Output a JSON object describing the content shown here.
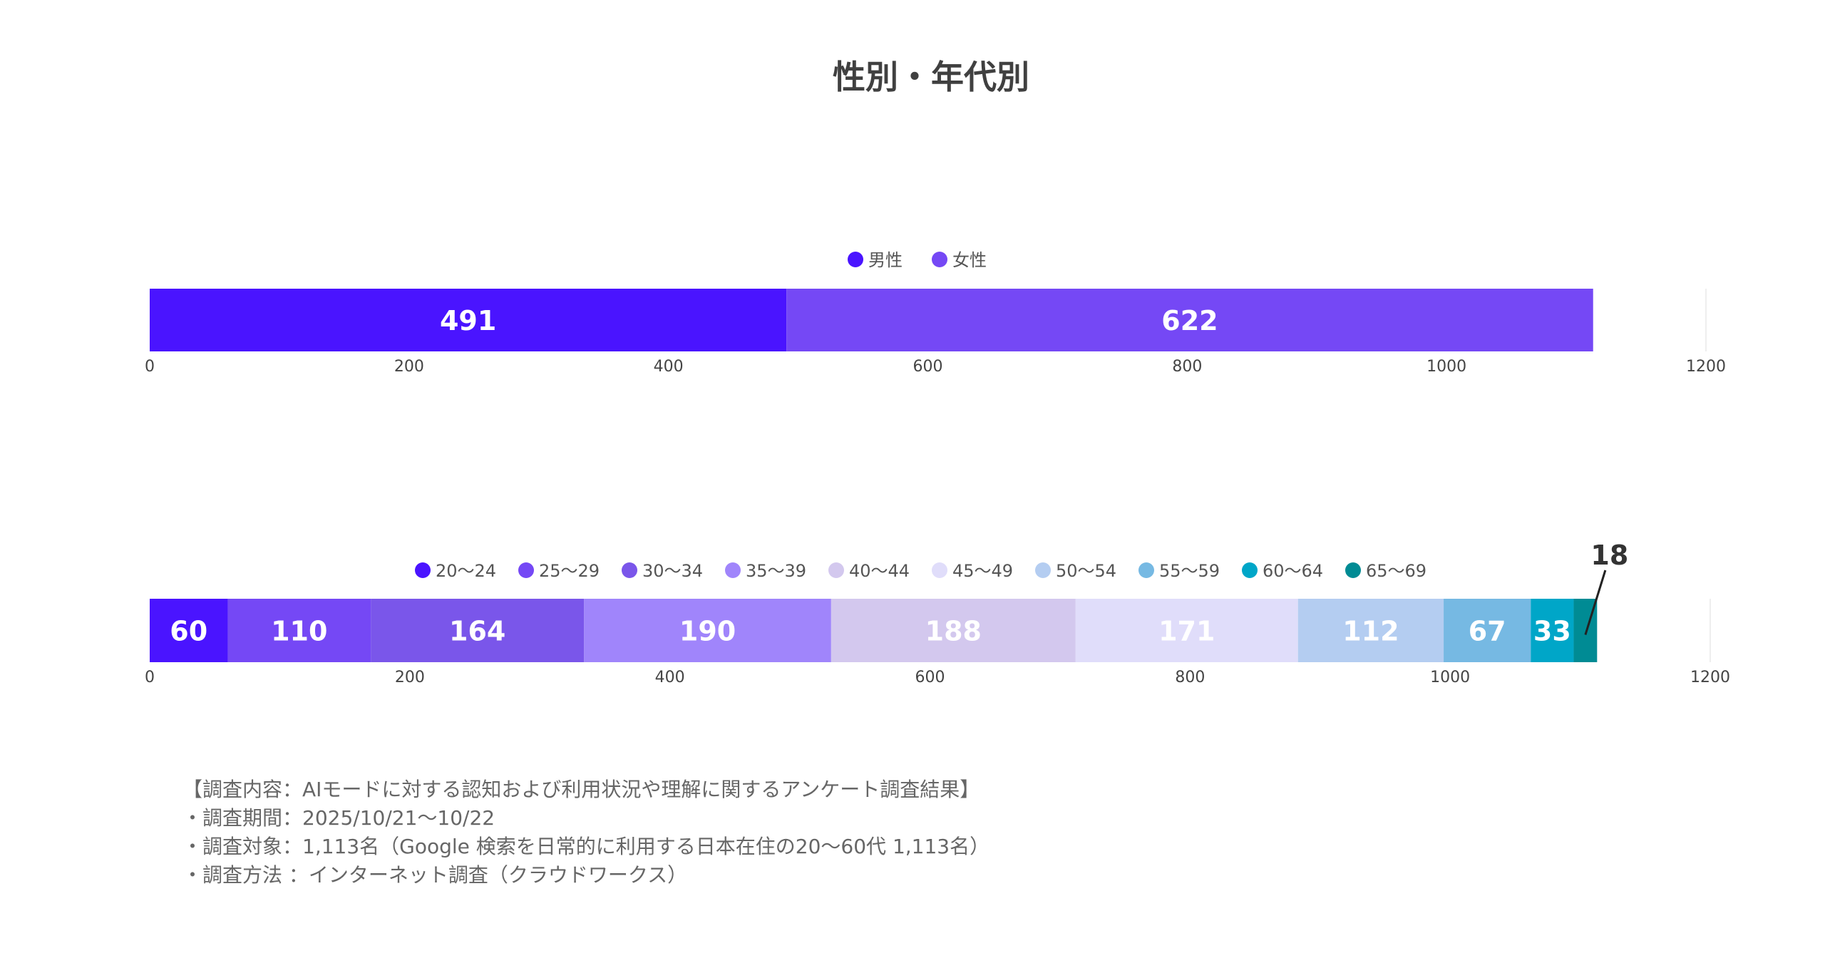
{
  "title": "性別・年代別",
  "chart_data": [
    {
      "type": "bar",
      "orientation": "horizontal-stacked",
      "xlim": [
        0,
        1200
      ],
      "ticks": [
        "0",
        "200",
        "400",
        "600",
        "800",
        "1000",
        "1200"
      ],
      "legend_position": "top",
      "series": [
        {
          "name": "男性",
          "value": 491,
          "color": "#4a14ff"
        },
        {
          "name": "女性",
          "value": 622,
          "color": "#7548f5"
        }
      ]
    },
    {
      "type": "bar",
      "orientation": "horizontal-stacked",
      "xlim": [
        0,
        1200
      ],
      "ticks": [
        "0",
        "200",
        "400",
        "600",
        "800",
        "1000",
        "1200"
      ],
      "legend_position": "top",
      "series": [
        {
          "name": "20〜24",
          "value": 60,
          "color": "#4a14ff"
        },
        {
          "name": "25〜29",
          "value": 110,
          "color": "#7548f5"
        },
        {
          "name": "30〜34",
          "value": 164,
          "color": "#7a56ea"
        },
        {
          "name": "35〜39",
          "value": 190,
          "color": "#a085fb"
        },
        {
          "name": "40〜44",
          "value": 188,
          "color": "#d3c8ee"
        },
        {
          "name": "45〜49",
          "value": 171,
          "color": "#e0ddfa"
        },
        {
          "name": "50〜54",
          "value": 112,
          "color": "#b4cdf1"
        },
        {
          "name": "55〜59",
          "value": 67,
          "color": "#76b9e3"
        },
        {
          "name": "60〜64",
          "value": 33,
          "color": "#00a6c8"
        },
        {
          "name": "65〜69",
          "value": 18,
          "color": "#008b94"
        }
      ]
    }
  ],
  "notes": [
    "【調査内容：AIモードに対する認知および利用状況や理解に関するアンケート調査結果】",
    "・調査期間：2025/10/21〜10/22",
    "・調査対象：1,113名（Google 検索を日常的に利用する日本在住の20〜60代 1,113名）",
    "・調査方法 ：インターネット調査（クラウドワークス）"
  ]
}
